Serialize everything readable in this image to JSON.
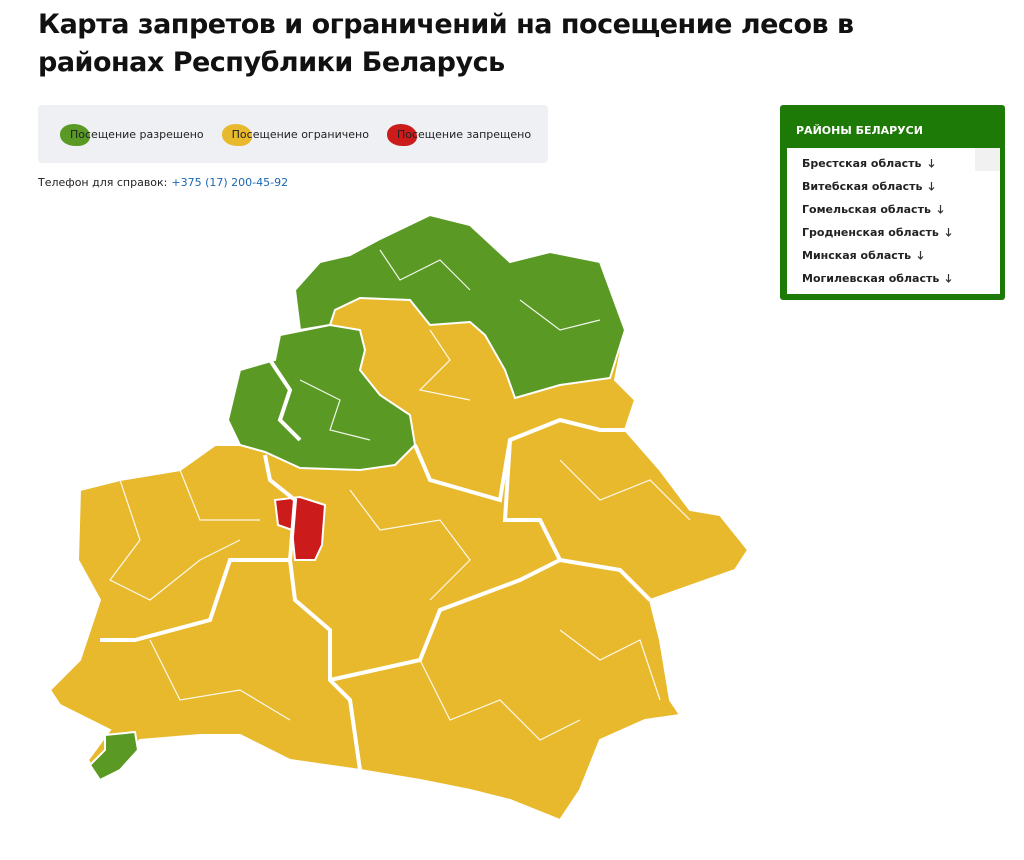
{
  "header": {
    "title": "Карта запретов и ограничений на посещение лесов в районах Республики Беларусь"
  },
  "legend": {
    "items": [
      {
        "label": "Посещение разрешено",
        "color": "#5a9a24"
      },
      {
        "label": "Посещение ограничено",
        "color": "#e8b92c"
      },
      {
        "label": "Посещение запрещено",
        "color": "#cc1b1b"
      }
    ]
  },
  "contact": {
    "label": "Телефон для справок:",
    "phone": "+375 (17) 200-45-92"
  },
  "sidebar": {
    "title": "РАЙОНЫ БЕЛАРУСИ",
    "items": [
      "Брестская область",
      "Витебская область",
      "Гомельская область",
      "Гродненская область",
      "Минская область",
      "Могилевская область"
    ]
  }
}
